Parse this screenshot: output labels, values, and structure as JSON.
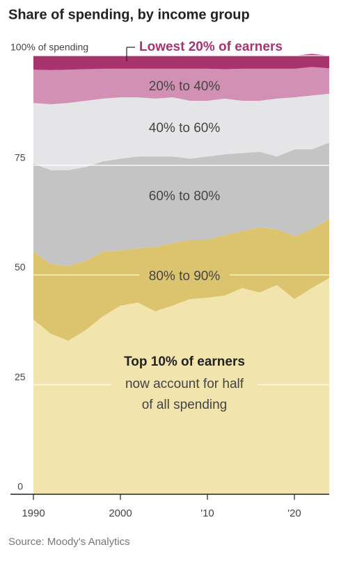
{
  "chart_data": {
    "type": "stacked_area",
    "title": "Share of spending, by income group",
    "source": "Source: Moody's Analytics",
    "annotation": [
      "now account for half",
      "of all spending"
    ],
    "x": [
      1990,
      1992,
      1994,
      1996,
      1998,
      2000,
      2002,
      2004,
      2006,
      2008,
      2010,
      2012,
      2014,
      2016,
      2018,
      2020,
      2022,
      2024
    ],
    "xlim": [
      1990,
      2024
    ],
    "xticks": [
      1990,
      2000,
      {
        "value": 2010,
        "label": "'10"
      },
      {
        "value": 2020,
        "label": "'20"
      }
    ],
    "ylim": [
      0,
      100
    ],
    "yticks": [
      0,
      25,
      50,
      75,
      {
        "value": 100,
        "label": "100% of spending"
      }
    ],
    "grid": true,
    "series": [
      {
        "name": "Top 10% of earners",
        "color": "#f1e4ad",
        "values": [
          39.8,
          36.6,
          35,
          37.4,
          40.6,
          43,
          43.7,
          41.7,
          43,
          44.5,
          44.8,
          45.3,
          47,
          46,
          47.7,
          44.5,
          47,
          49.3
        ]
      },
      {
        "name": "80% to 90%",
        "color": "#dcc46f",
        "values": [
          15.5,
          15.9,
          17,
          15.8,
          14.7,
          12.6,
          12.4,
          14.7,
          14.2,
          13.5,
          13.2,
          13.8,
          13,
          14.9,
          12.7,
          14.3,
          13.4,
          13.5
        ]
      },
      {
        "name": "60% to 80%",
        "color": "#c4c4c4",
        "values": [
          20.1,
          21.4,
          21.9,
          21.4,
          20.6,
          20.9,
          20.9,
          20.6,
          19.8,
          18.5,
          19,
          18.4,
          17.8,
          17.2,
          16.6,
          19.8,
          18.2,
          17.4
        ]
      },
      {
        "name": "40% to 60%",
        "color": "#e5e5e7",
        "values": [
          13.8,
          15,
          15.3,
          15.1,
          14.3,
          14,
          13.5,
          13.2,
          13.5,
          13.2,
          12.7,
          12.7,
          11.9,
          11.6,
          13.2,
          11.9,
          12.3,
          11.1
        ]
      },
      {
        "name": "20% to 40%",
        "color": "#d291b4",
        "values": [
          7.6,
          7.8,
          7.6,
          7.2,
          6.8,
          6.5,
          6.5,
          6.8,
          6.5,
          7.3,
          7.3,
          6.7,
          7.3,
          7.3,
          6.8,
          6.5,
          6.5,
          5.8
        ]
      },
      {
        "name": "Lowest 20% of earners",
        "color": "#a8336f",
        "values": [
          3.2,
          3.3,
          3.2,
          3.1,
          3,
          3,
          3,
          3,
          3,
          3,
          3,
          3.1,
          3,
          3,
          3,
          3,
          3,
          2.9
        ]
      }
    ]
  }
}
